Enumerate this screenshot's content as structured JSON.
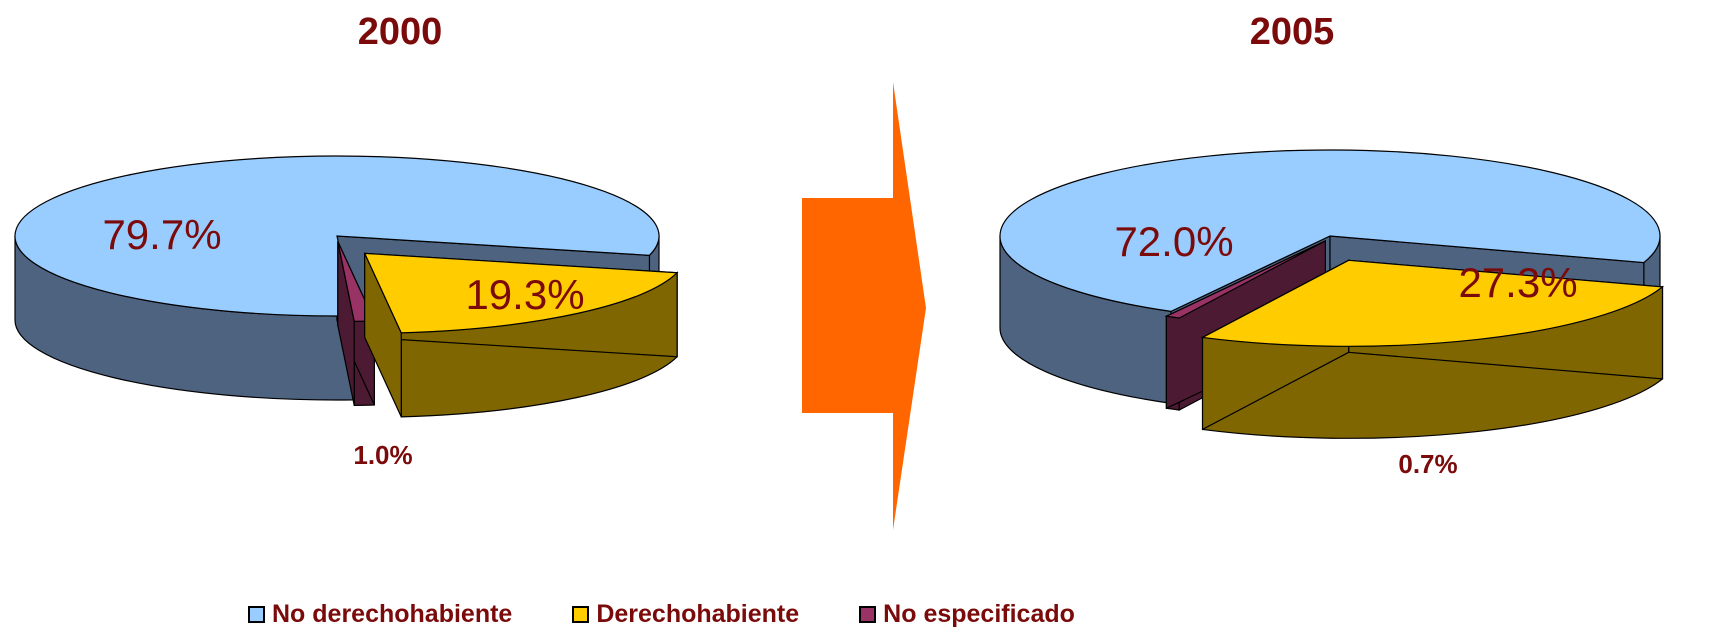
{
  "chart_data": [
    {
      "type": "pie",
      "title": "2000",
      "categories": [
        "No derechohabiente",
        "Derechohabiente",
        "No especificado"
      ],
      "values": [
        79.7,
        19.3,
        1.0
      ],
      "labels": [
        "79.7%",
        "19.3%",
        "1.0%"
      ]
    },
    {
      "type": "pie",
      "title": "2005",
      "categories": [
        "No derechohabiente",
        "Derechohabiente",
        "No especificado"
      ],
      "values": [
        72.0,
        27.3,
        0.7
      ],
      "labels": [
        "72.0%",
        "27.3%",
        "0.7%"
      ]
    }
  ],
  "legend": [
    {
      "label": "No derechohabiente",
      "color": "#99ccff"
    },
    {
      "label": "Derechohabiente",
      "color": "#ffcc00"
    },
    {
      "label": "No especificado",
      "color": "#993366"
    }
  ],
  "colors": {
    "top": [
      "#99ccff",
      "#ffcc00",
      "#993366"
    ],
    "side": [
      "#4d6380",
      "#806600",
      "#4d1a33"
    ],
    "arrow": "#ff6600",
    "label_text": "#7b0a0a"
  }
}
